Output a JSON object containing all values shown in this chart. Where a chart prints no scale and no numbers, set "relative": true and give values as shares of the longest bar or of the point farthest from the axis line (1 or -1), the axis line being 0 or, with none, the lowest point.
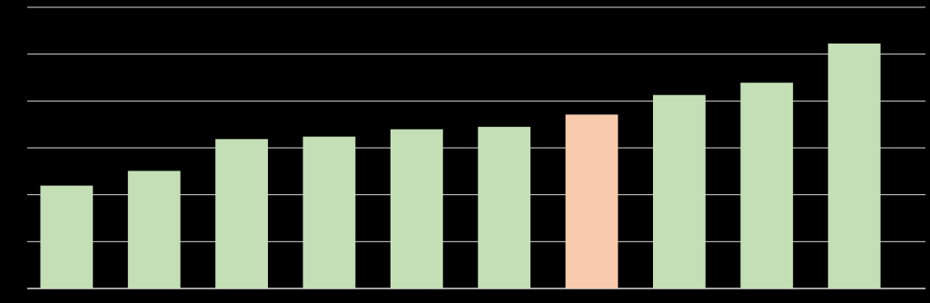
{
  "chart_data": {
    "type": "bar",
    "relative": true,
    "categories": [
      null,
      null,
      null,
      null,
      null,
      null,
      null,
      null,
      null,
      null
    ],
    "values": [
      0.42,
      0.48,
      0.61,
      0.62,
      0.65,
      0.66,
      0.71,
      0.79,
      0.84,
      1
    ],
    "colors": [
      "#c4dfb5",
      "#c4dfb5",
      "#c4dfb5",
      "#c4dfb5",
      "#c4dfb5",
      "#c4dfb5",
      "#f8cbad",
      "#c4dfb5",
      "#c4dfb5",
      "#c4dfb5"
    ],
    "grid": true
  }
}
